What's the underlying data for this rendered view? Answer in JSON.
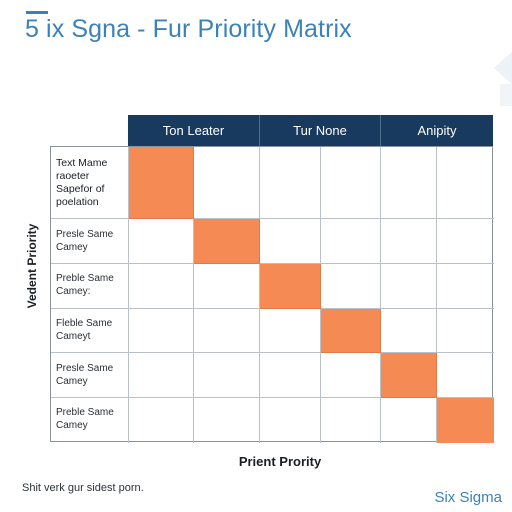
{
  "title": "5 ix Sgna - Fur Priority Matrix",
  "columns": [
    "Ton Leater",
    "Tur None",
    "Anipity"
  ],
  "row_labels": [
    "Text Mame\nraoeter\nSapefor of\npoelation",
    "Presle Same\nCamey",
    "Preble Same\nCamey:",
    "Fleble Same\nCameyt",
    "Presle Same\nCamey",
    "Preble Same\nCamey"
  ],
  "y_axis_label": "Vedent Priority",
  "x_axis_label": "Prient Prority",
  "footer_note": "Shit verk gur sidest porn.",
  "brand": "Six Sigma",
  "highlighted_cells": [
    {
      "row": 0,
      "col": 1
    },
    {
      "row": 1,
      "col": 2
    },
    {
      "row": 2,
      "col": 3
    },
    {
      "row": 3,
      "col": 4
    },
    {
      "row": 4,
      "col": 5
    },
    {
      "row": 5,
      "col": 6
    }
  ],
  "colors": {
    "header": "#173a5e",
    "highlight": "#f58a55",
    "title": "#3c82b6",
    "brand": "#3c82b6"
  }
}
